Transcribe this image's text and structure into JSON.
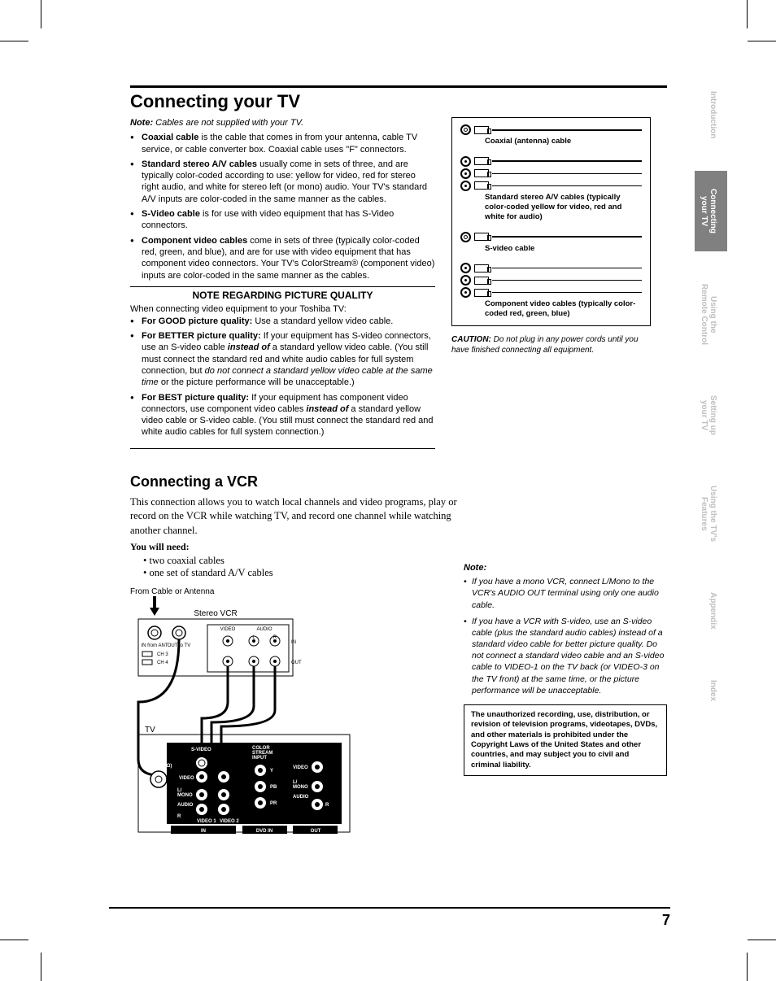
{
  "page_number": "7",
  "side_tabs": [
    {
      "label": "Introduction",
      "active": false
    },
    {
      "label": "Connecting\nyour TV",
      "active": true
    },
    {
      "label": "Using the\nRemote Control",
      "active": false
    },
    {
      "label": "Setting up\nyour TV",
      "active": false
    },
    {
      "label": "Using the TV's\nFeatures",
      "active": false
    },
    {
      "label": "Appendix",
      "active": false
    },
    {
      "label": "Index",
      "active": false
    }
  ],
  "heading1": "Connecting your TV",
  "note_lead_bold": "Note:",
  "note_lead_rest": " Cables are not supplied with your TV.",
  "cable_bullets": [
    {
      "b": "Coaxial cable",
      "rest": " is the cable that comes in from your antenna, cable TV service, or cable converter box. Coaxial cable uses \"F\" connectors."
    },
    {
      "b": "Standard stereo A/V cables",
      "rest": " usually come in sets of three, and are typically color-coded according to use: yellow for video, red for stereo right audio, and white for stereo left (or mono) audio. Your TV's standard A/V inputs are color-coded in the same manner as the cables."
    },
    {
      "b": "S-Video cable",
      "rest": " is for use with video equipment that has S-Video connectors."
    },
    {
      "b": "Component video cables",
      "rest": " come in sets of three (typically color-coded red, green, and blue), and are for use with video equipment that has component video connectors. Your TV's ColorStream® (component video) inputs are color-coded in the same manner as the cables."
    }
  ],
  "pq_title": "NOTE REGARDING PICTURE QUALITY",
  "pq_intro": "When connecting video equipment to your Toshiba TV:",
  "pq_bullets": [
    {
      "b": "For GOOD picture quality:",
      "rest": " Use a standard yellow video cable."
    },
    {
      "b": "For BETTER picture quality:",
      "rest_pre": " If your equipment has S-video connectors, use an S-video cable ",
      "instead": "instead of",
      "rest_mid": " a standard yellow video cable. (You still must connect the standard red and white audio cables for full system connection, but ",
      "ital": "do not connect a standard yellow video cable at the same time",
      "rest_post": " or the picture performance will be unacceptable.)"
    },
    {
      "b": "For BEST picture quality:",
      "rest_pre": " If your equipment has component video connectors, use component video cables ",
      "instead": "instead of",
      "rest_post": " a standard yellow video cable or S-video cable. (You still must connect the standard red and white audio cables for full system connection.)"
    }
  ],
  "cable_diagram": {
    "coax": "Coaxial (antenna) cable",
    "av": "Standard stereo A/V cables (typically color-coded yellow for video, red and white for audio)",
    "svideo": "S-video cable",
    "component": "Component video cables (typically color-coded red, green, blue)"
  },
  "caution_b": "CAUTION:",
  "caution_rest": " Do not plug in any power cords until you have finished connecting all equipment.",
  "heading2": "Connecting a VCR",
  "vcr_intro": "This connection allows you to watch local channels and video programs, play or record on the VCR while watching TV, and record one channel while watching another channel.",
  "you_need": "You will need:",
  "need_items": [
    "two coaxial cables",
    "one set of standard A/V cables"
  ],
  "wiring": {
    "from_label": "From Cable or Antenna",
    "vcr_label": "Stereo VCR",
    "tv_label": "TV",
    "in_ant": "IN from ANT",
    "out_tv": "OUT to TV",
    "ch3": "CH 3",
    "ch4": "CH 4",
    "video": "VIDEO",
    "audio": "AUDIO",
    "l": "L",
    "r": "R",
    "in": "IN",
    "out": "OUT",
    "svideo": "S-VIDEO",
    "ant75": "ANT ( 75 Ω)",
    "lmono": "L/\nMONO",
    "colorstream": "COLOR\nSTREAM\nINPUT",
    "y": "Y",
    "pb": "PB",
    "pr": "PR",
    "video1": "VIDEO 1",
    "video2": "VIDEO 2",
    "dvdin": "DVD IN"
  },
  "right_note_hdr": "Note:",
  "right_notes": [
    "If you have a mono VCR, connect L/Mono to the VCR's AUDIO OUT terminal using only one audio cable.",
    "If you have a VCR with S-video, use an S-video cable (plus the standard audio cables) instead of a standard video cable for better picture quality. Do not connect a standard video cable and an S-video cable to VIDEO-1 on the TV back (or VIDEO-3 on the TV front) at the same time, or the picture performance will be unacceptable."
  ],
  "warning": "The unauthorized recording, use, distribution, or revision of television programs, videotapes, DVDs, and other materials is prohibited under the Copyright Laws of the United States and other countries, and may subject you to civil and criminal liability."
}
